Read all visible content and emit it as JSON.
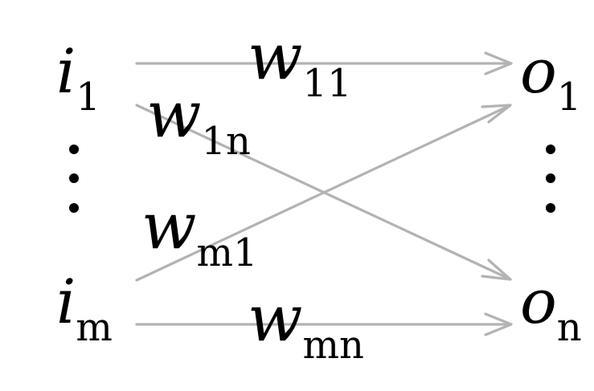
{
  "inputs": {
    "first": {
      "symbol": "i",
      "subscript": "1"
    },
    "last": {
      "symbol": "i",
      "subscript": "m"
    }
  },
  "outputs": {
    "first": {
      "symbol": "o",
      "subscript": "1"
    },
    "last": {
      "symbol": "o",
      "subscript": "n"
    }
  },
  "weights": {
    "w11": {
      "symbol": "w",
      "subscript": "11"
    },
    "w1n": {
      "symbol": "w",
      "subscript": "1n"
    },
    "wm1": {
      "symbol": "w",
      "subscript": "m1"
    },
    "wmn": {
      "symbol": "w",
      "subscript": "mn"
    }
  },
  "colors": {
    "arrow": "#b3b3b3",
    "text": "#000000",
    "background": "#ffffff"
  }
}
